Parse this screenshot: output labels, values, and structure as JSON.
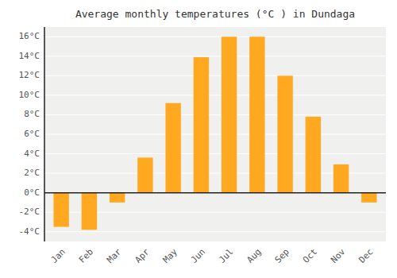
{
  "chart_data": {
    "type": "bar",
    "title": "Average monthly temperatures (°C ) in Dundaga",
    "categories": [
      "Jan",
      "Feb",
      "Mar",
      "Apr",
      "May",
      "Jun",
      "Jul",
      "Aug",
      "Sep",
      "Oct",
      "Nov",
      "Dec"
    ],
    "values": [
      -3.5,
      -3.8,
      -1.0,
      3.6,
      9.2,
      13.9,
      16.0,
      16.0,
      12.0,
      7.8,
      2.9,
      -1.0
    ],
    "color": "#FFA820",
    "ylim": [
      -5,
      17
    ],
    "yticks": [
      {
        "value": -4,
        "label": "-4°C"
      },
      {
        "value": -2,
        "label": "-2°C"
      },
      {
        "value": 0,
        "label": "0°C"
      },
      {
        "value": 2,
        "label": "2°C"
      },
      {
        "value": 4,
        "label": "4°C"
      },
      {
        "value": 6,
        "label": "6°C"
      },
      {
        "value": 8,
        "label": "8°C"
      },
      {
        "value": 10,
        "label": "10°C"
      },
      {
        "value": 12,
        "label": "12°C"
      },
      {
        "value": 14,
        "label": "14°C"
      },
      {
        "value": 16,
        "label": "16°C"
      }
    ],
    "grid": true
  }
}
